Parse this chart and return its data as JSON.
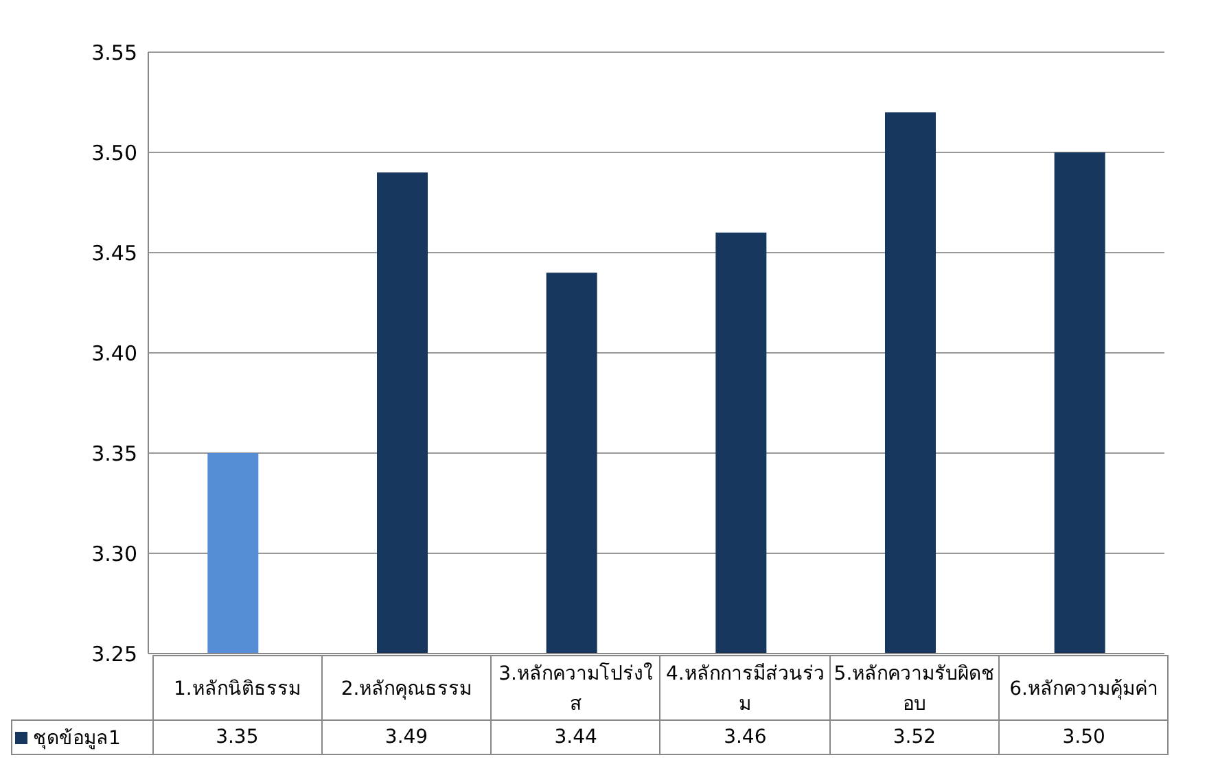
{
  "chart_data": {
    "type": "bar",
    "categories": [
      "1.หลักนิติธรรม",
      "2.หลักคุณธรรม",
      "3.หลักความโปร่งใส",
      "4.หลักการมีส่วนร่วม",
      "5.หลักความรับผิดชอบ",
      "6.หลักความคุ้มค่า"
    ],
    "series": [
      {
        "name": "ชุดข้อมูล1",
        "color": "#17375e",
        "colors": [
          "#558ed5",
          "#17375e",
          "#17375e",
          "#17375e",
          "#17375e",
          "#17375e"
        ],
        "values": [
          3.35,
          3.49,
          3.44,
          3.46,
          3.52,
          3.5
        ],
        "value_labels": [
          "3.35",
          "3.49",
          "3.44",
          "3.46",
          "3.52",
          "3.50"
        ]
      }
    ],
    "ylim": [
      3.25,
      3.55
    ],
    "yticks": [
      {
        "value": 3.25,
        "label": "3.25"
      },
      {
        "value": 3.3,
        "label": "3.30"
      },
      {
        "value": 3.35,
        "label": "3.35"
      },
      {
        "value": 3.4,
        "label": "3.40"
      },
      {
        "value": 3.45,
        "label": "3.45"
      },
      {
        "value": 3.5,
        "label": "3.50"
      },
      {
        "value": 3.55,
        "label": "3.55"
      }
    ],
    "grid": "y",
    "legend": "bottom left"
  }
}
